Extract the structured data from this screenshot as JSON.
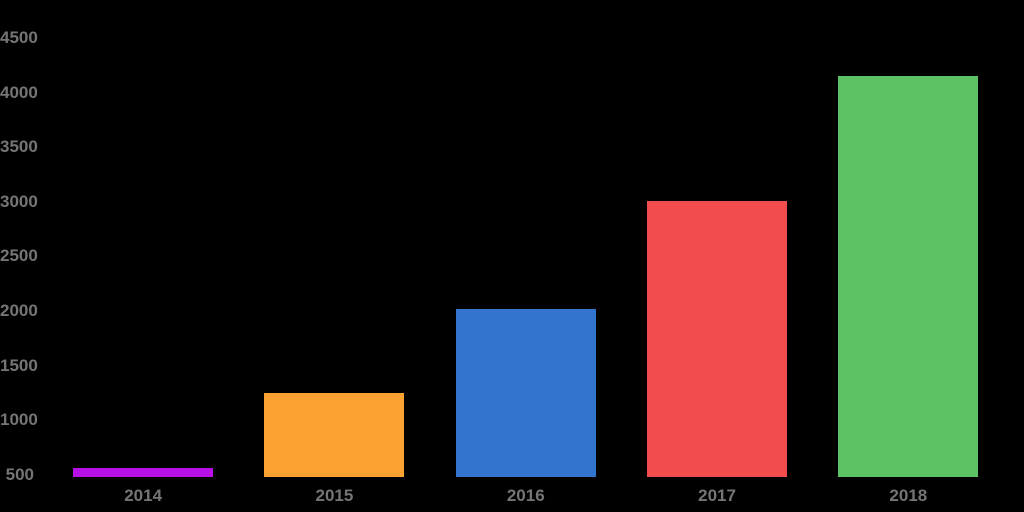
{
  "chart_data": {
    "type": "bar",
    "title": "",
    "xlabel": "",
    "ylabel": "",
    "categories": [
      "2014",
      "2015",
      "2016",
      "2017",
      "2018"
    ],
    "values": [
      560,
      1250,
      2020,
      3010,
      4150
    ],
    "bar_colors": [
      "#B711E7",
      "#F9A232",
      "#3274CE",
      "#F24C4C",
      "#5CC263"
    ],
    "y_ticks": [
      500,
      1000,
      1500,
      2000,
      2500,
      3000,
      3500,
      4000,
      4500
    ],
    "ylim": [
      500,
      4500
    ],
    "grid": "off",
    "legend": "none",
    "colors": {
      "background": "#000000",
      "tick_label": "#757575"
    }
  }
}
